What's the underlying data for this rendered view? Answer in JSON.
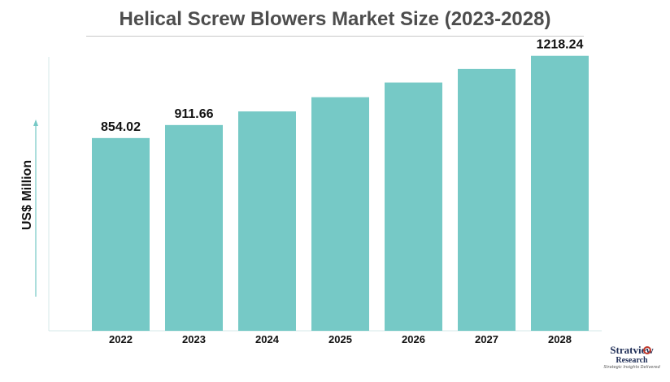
{
  "chart_data": {
    "type": "bar",
    "title": "Helical Screw Blowers Market Size (2023-2028)",
    "ylabel": "US$ Million",
    "xlabel": "",
    "categories": [
      "2022",
      "2023",
      "2024",
      "2025",
      "2026",
      "2027",
      "2028"
    ],
    "values": [
      854.02,
      911.66,
      972.0,
      1035.0,
      1100.0,
      1160.0,
      1218.24
    ],
    "data_labels": [
      "854.02",
      "911.66",
      "",
      "",
      "",
      "",
      "1218.24"
    ],
    "ylim": [
      0,
      1300
    ],
    "grid": false,
    "legend": "none",
    "bar_color": "#76c9c6"
  },
  "logo": {
    "brand": "Stratview",
    "sub": "Research",
    "tagline": "Strategic Insights Delivered"
  }
}
